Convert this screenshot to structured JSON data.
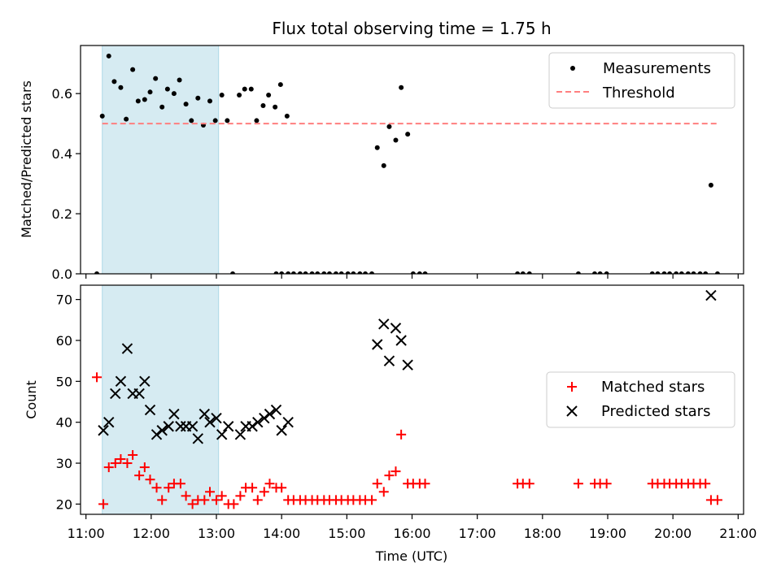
{
  "chart_data": [
    {
      "type": "scatter",
      "title": "Flux total observing time = 1.75 h",
      "xlabel": "",
      "ylabel": "Matched/Predicted stars",
      "x_unit": "time of day (UTC), HH:MM",
      "xlim": [
        "10:55",
        "21:05"
      ],
      "ylim": [
        0,
        0.76
      ],
      "y_ticks": [
        0.0,
        0.2,
        0.4,
        0.6
      ],
      "y_tick_labels": [
        "0.0",
        "0.2",
        "0.4",
        "0.6"
      ],
      "shaded_region": {
        "x_start": "11:15",
        "x_end": "13:02",
        "color": "#add8e6"
      },
      "series": [
        {
          "name": "Measurements",
          "marker": "dot",
          "color": "#000000",
          "points": [
            [
              "11:10",
              0.0
            ],
            [
              "11:15",
              0.525
            ],
            [
              "11:21",
              0.725
            ],
            [
              "11:26",
              0.64
            ],
            [
              "11:32",
              0.62
            ],
            [
              "11:37",
              0.515
            ],
            [
              "11:43",
              0.68
            ],
            [
              "11:48",
              0.575
            ],
            [
              "11:54",
              0.58
            ],
            [
              "11:59",
              0.605
            ],
            [
              "12:04",
              0.65
            ],
            [
              "12:10",
              0.555
            ],
            [
              "12:15",
              0.615
            ],
            [
              "12:21",
              0.6
            ],
            [
              "12:26",
              0.645
            ],
            [
              "12:32",
              0.565
            ],
            [
              "12:37",
              0.51
            ],
            [
              "12:43",
              0.585
            ],
            [
              "12:48",
              0.495
            ],
            [
              "12:54",
              0.575
            ],
            [
              "12:59",
              0.51
            ],
            [
              "13:05",
              0.595
            ],
            [
              "13:10",
              0.51
            ],
            [
              "13:15",
              0.0
            ],
            [
              "13:21",
              0.595
            ],
            [
              "13:26",
              0.615
            ],
            [
              "13:32",
              0.615
            ],
            [
              "13:37",
              0.51
            ],
            [
              "13:43",
              0.56
            ],
            [
              "13:48",
              0.595
            ],
            [
              "13:54",
              0.555
            ],
            [
              "13:59",
              0.63
            ],
            [
              "14:05",
              0.525
            ],
            [
              "13:55",
              0.0
            ],
            [
              "14:00",
              0.0
            ],
            [
              "14:06",
              0.0
            ],
            [
              "14:11",
              0.0
            ],
            [
              "14:17",
              0.0
            ],
            [
              "14:22",
              0.0
            ],
            [
              "14:28",
              0.0
            ],
            [
              "14:33",
              0.0
            ],
            [
              "14:39",
              0.0
            ],
            [
              "14:44",
              0.0
            ],
            [
              "14:50",
              0.0
            ],
            [
              "14:55",
              0.0
            ],
            [
              "15:01",
              0.0
            ],
            [
              "15:06",
              0.0
            ],
            [
              "15:12",
              0.0
            ],
            [
              "15:17",
              0.0
            ],
            [
              "15:23",
              0.0
            ],
            [
              "15:28",
              0.42
            ],
            [
              "15:34",
              0.36
            ],
            [
              "15:39",
              0.49
            ],
            [
              "15:45",
              0.445
            ],
            [
              "15:50",
              0.62
            ],
            [
              "15:56",
              0.465
            ],
            [
              "16:01",
              0.0
            ],
            [
              "16:07",
              0.0
            ],
            [
              "16:12",
              0.0
            ],
            [
              "17:37",
              0.0
            ],
            [
              "17:42",
              0.0
            ],
            [
              "17:48",
              0.0
            ],
            [
              "18:33",
              0.0
            ],
            [
              "18:48",
              0.0
            ],
            [
              "18:53",
              0.0
            ],
            [
              "18:59",
              0.0
            ],
            [
              "19:41",
              0.0
            ],
            [
              "19:46",
              0.0
            ],
            [
              "19:52",
              0.0
            ],
            [
              "19:57",
              0.0
            ],
            [
              "20:03",
              0.0
            ],
            [
              "20:08",
              0.0
            ],
            [
              "20:14",
              0.0
            ],
            [
              "20:19",
              0.0
            ],
            [
              "20:25",
              0.0
            ],
            [
              "20:30",
              0.0
            ],
            [
              "20:35",
              0.295
            ],
            [
              "20:41",
              0.0
            ]
          ]
        },
        {
          "name": "Threshold",
          "marker": "dashed-line",
          "color": "#ff7f7f",
          "points": [
            [
              "11:15",
              0.5
            ],
            [
              "20:41",
              0.5
            ]
          ]
        }
      ]
    },
    {
      "type": "scatter",
      "title": "",
      "xlabel": "Time (UTC)",
      "ylabel": "Count",
      "x_unit": "time of day (UTC), HH:MM",
      "xlim": [
        "10:55",
        "21:05"
      ],
      "ylim": [
        17.5,
        73.5
      ],
      "y_ticks": [
        20,
        30,
        40,
        50,
        60,
        70
      ],
      "y_tick_labels": [
        "20",
        "30",
        "40",
        "50",
        "60",
        "70"
      ],
      "x_ticks": [
        "11:00",
        "12:00",
        "13:00",
        "14:00",
        "15:00",
        "16:00",
        "17:00",
        "18:00",
        "19:00",
        "20:00",
        "21:00"
      ],
      "x_tick_labels": [
        "11:00",
        "12:00",
        "13:00",
        "14:00",
        "15:00",
        "16:00",
        "17:00",
        "18:00",
        "19:00",
        "20:00",
        "21:00"
      ],
      "shaded_region": {
        "x_start": "11:15",
        "x_end": "13:02",
        "color": "#add8e6"
      },
      "series": [
        {
          "name": "Matched stars",
          "marker": "plus",
          "color": "#ff0000",
          "points": [
            [
              "11:10",
              51
            ],
            [
              "11:16",
              20
            ],
            [
              "11:21",
              29
            ],
            [
              "11:27",
              30
            ],
            [
              "11:32",
              31
            ],
            [
              "11:38",
              30
            ],
            [
              "11:43",
              32
            ],
            [
              "11:49",
              27
            ],
            [
              "11:54",
              29
            ],
            [
              "11:59",
              26
            ],
            [
              "12:05",
              24
            ],
            [
              "12:10",
              21
            ],
            [
              "12:16",
              24
            ],
            [
              "12:21",
              25
            ],
            [
              "12:27",
              25
            ],
            [
              "12:32",
              22
            ],
            [
              "12:38",
              20
            ],
            [
              "12:43",
              21
            ],
            [
              "12:49",
              21
            ],
            [
              "12:54",
              23
            ],
            [
              "13:00",
              21
            ],
            [
              "13:05",
              22
            ],
            [
              "13:11",
              20
            ],
            [
              "13:16",
              20
            ],
            [
              "13:22",
              22
            ],
            [
              "13:27",
              24
            ],
            [
              "13:33",
              24
            ],
            [
              "13:38",
              21
            ],
            [
              "13:44",
              23
            ],
            [
              "13:49",
              25
            ],
            [
              "13:55",
              24
            ],
            [
              "14:00",
              24
            ],
            [
              "14:06",
              21
            ],
            [
              "14:11",
              21
            ],
            [
              "14:17",
              21
            ],
            [
              "14:22",
              21
            ],
            [
              "14:28",
              21
            ],
            [
              "14:33",
              21
            ],
            [
              "14:39",
              21
            ],
            [
              "14:44",
              21
            ],
            [
              "14:50",
              21
            ],
            [
              "14:55",
              21
            ],
            [
              "15:01",
              21
            ],
            [
              "15:06",
              21
            ],
            [
              "15:12",
              21
            ],
            [
              "15:17",
              21
            ],
            [
              "15:23",
              21
            ],
            [
              "15:28",
              25
            ],
            [
              "15:34",
              23
            ],
            [
              "15:39",
              27
            ],
            [
              "15:45",
              28
            ],
            [
              "15:50",
              37
            ],
            [
              "15:56",
              25
            ],
            [
              "16:01",
              25
            ],
            [
              "16:07",
              25
            ],
            [
              "16:12",
              25
            ],
            [
              "17:37",
              25
            ],
            [
              "17:42",
              25
            ],
            [
              "17:48",
              25
            ],
            [
              "18:33",
              25
            ],
            [
              "18:48",
              25
            ],
            [
              "18:53",
              25
            ],
            [
              "18:59",
              25
            ],
            [
              "19:41",
              25
            ],
            [
              "19:46",
              25
            ],
            [
              "19:52",
              25
            ],
            [
              "19:57",
              25
            ],
            [
              "20:03",
              25
            ],
            [
              "20:08",
              25
            ],
            [
              "20:14",
              25
            ],
            [
              "20:19",
              25
            ],
            [
              "20:25",
              25
            ],
            [
              "20:30",
              25
            ],
            [
              "20:35",
              21
            ],
            [
              "20:41",
              21
            ]
          ]
        },
        {
          "name": "Predicted stars",
          "marker": "x",
          "color": "#000000",
          "points": [
            [
              "11:16",
              38
            ],
            [
              "11:21",
              40
            ],
            [
              "11:27",
              47
            ],
            [
              "11:32",
              50
            ],
            [
              "11:38",
              58
            ],
            [
              "11:43",
              47
            ],
            [
              "11:49",
              47
            ],
            [
              "11:54",
              50
            ],
            [
              "11:59",
              43
            ],
            [
              "12:05",
              37
            ],
            [
              "12:10",
              38
            ],
            [
              "12:16",
              39
            ],
            [
              "12:21",
              42
            ],
            [
              "12:27",
              39
            ],
            [
              "12:32",
              39
            ],
            [
              "12:38",
              39
            ],
            [
              "12:43",
              36
            ],
            [
              "12:49",
              42
            ],
            [
              "12:54",
              40
            ],
            [
              "13:00",
              41
            ],
            [
              "13:05",
              37
            ],
            [
              "13:11",
              39
            ],
            [
              "13:22",
              37
            ],
            [
              "13:27",
              39
            ],
            [
              "13:33",
              39
            ],
            [
              "13:38",
              40
            ],
            [
              "13:44",
              41
            ],
            [
              "13:49",
              42
            ],
            [
              "13:55",
              43
            ],
            [
              "14:00",
              38
            ],
            [
              "14:06",
              40
            ],
            [
              "15:28",
              59
            ],
            [
              "15:34",
              64
            ],
            [
              "15:39",
              55
            ],
            [
              "15:45",
              63
            ],
            [
              "15:50",
              60
            ],
            [
              "15:56",
              54
            ],
            [
              "20:35",
              71
            ]
          ]
        }
      ]
    }
  ]
}
